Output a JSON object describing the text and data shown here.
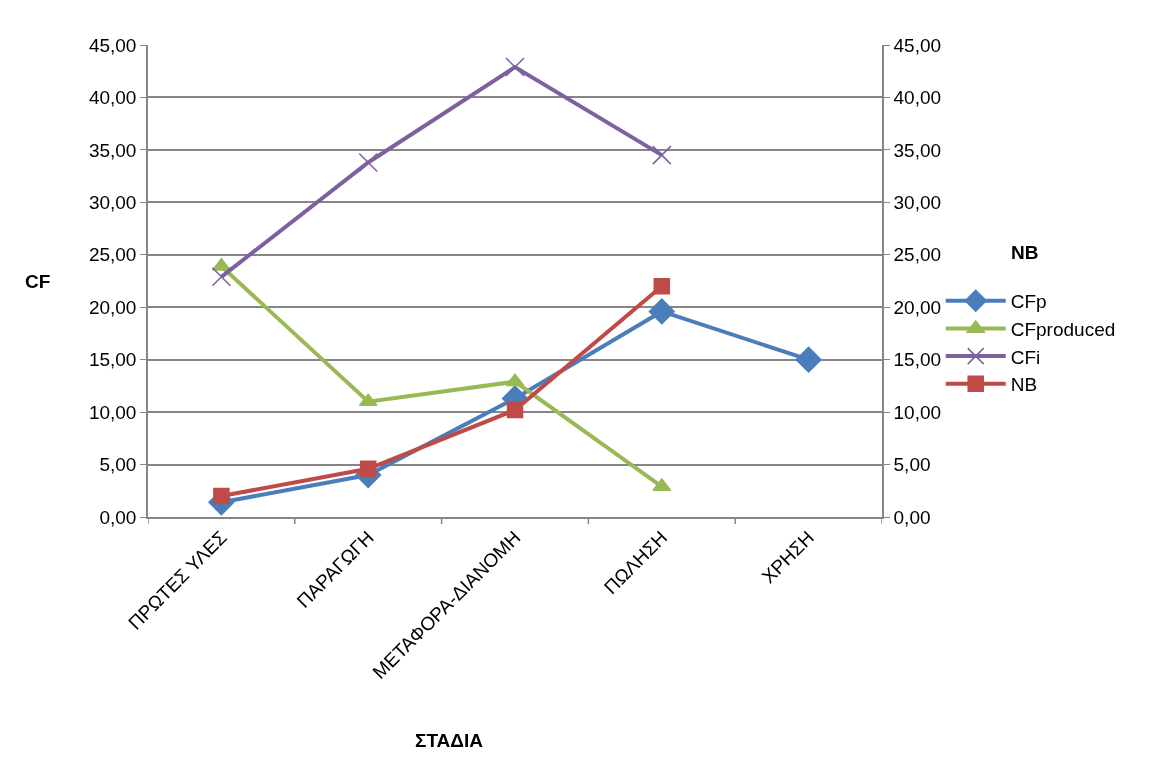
{
  "chart_data": {
    "type": "line",
    "xlabel": "ΣΤΑΔΙΑ",
    "ylabel": "CF",
    "y2label": "NB",
    "categories": [
      "ΠΡΩΤΕΣ ΥΛΕΣ",
      "ΠΑΡΑΓΩΓΗ",
      "ΜΕΤΑΦΟΡΑ-ΔΙΑΝΟΜΗ",
      "ΠΩΛΗΣΗ",
      "ΧΡΗΣΗ"
    ],
    "series": [
      {
        "name": "CFp",
        "color": "#4a7ebb",
        "marker": "diamond",
        "values": [
          1.4,
          4.0,
          11.3,
          19.6,
          15.0
        ]
      },
      {
        "name": "CFproduced",
        "color": "#98b954",
        "marker": "triangle",
        "values": [
          23.9,
          11.0,
          12.9,
          2.9,
          null
        ]
      },
      {
        "name": "CFi",
        "color": "#7d60a0",
        "marker": "cross",
        "values": [
          22.9,
          33.8,
          42.9,
          34.5,
          null
        ]
      },
      {
        "name": "NB",
        "color": "#be4b48",
        "marker": "square",
        "axis": "y2",
        "values": [
          2.0,
          4.6,
          10.2,
          22.0,
          null
        ]
      }
    ],
    "ylim": [
      0,
      45
    ],
    "yticks": [
      {
        "value": 0,
        "label": "0,00"
      },
      {
        "value": 5,
        "label": "5,00"
      },
      {
        "value": 10,
        "label": "10,00"
      },
      {
        "value": 15,
        "label": "15,00"
      },
      {
        "value": 20,
        "label": "20,00"
      },
      {
        "value": 25,
        "label": "25,00"
      },
      {
        "value": 30,
        "label": "30,00"
      },
      {
        "value": 35,
        "label": "35,00"
      },
      {
        "value": 40,
        "label": "40,00"
      },
      {
        "value": 45,
        "label": "45,00"
      }
    ],
    "y2lim": [
      0,
      45
    ],
    "y2ticks": [
      {
        "value": 0,
        "label": "0,00"
      },
      {
        "value": 5,
        "label": "5,00"
      },
      {
        "value": 10,
        "label": "10,00"
      },
      {
        "value": 15,
        "label": "15,00"
      },
      {
        "value": 20,
        "label": "20,00"
      },
      {
        "value": 25,
        "label": "25,00"
      },
      {
        "value": 30,
        "label": "30,00"
      },
      {
        "value": 35,
        "label": "35,00"
      },
      {
        "value": 40,
        "label": "40,00"
      },
      {
        "value": 45,
        "label": "45,00"
      }
    ],
    "grid": "y",
    "legend": "right",
    "line_style": "solid"
  }
}
